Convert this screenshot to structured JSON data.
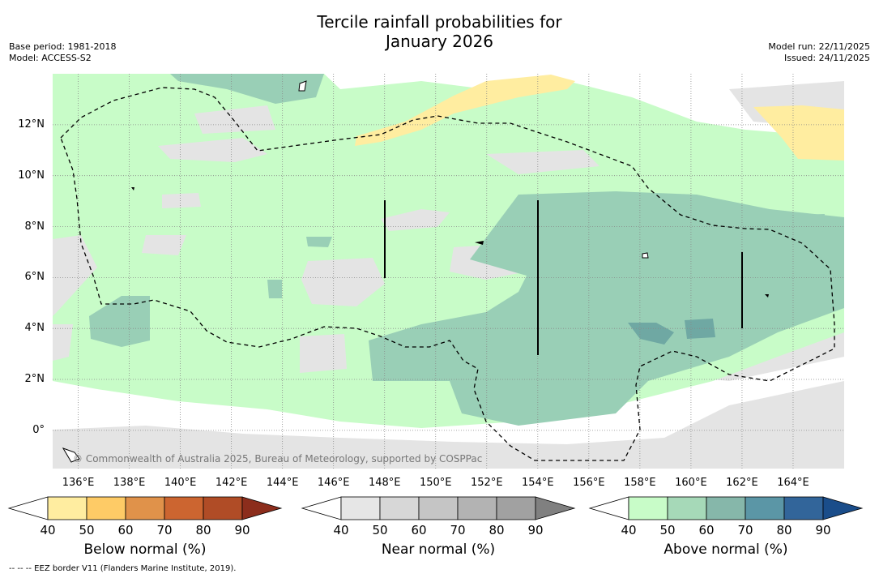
{
  "title": {
    "line1": "Tercile rainfall probabilities for",
    "line2": "January 2026"
  },
  "meta": {
    "base_period": "Base period: 1981-2018",
    "model": "Model: ACCESS-S2",
    "model_run": "Model run: 22/11/2025",
    "issued": "Issued: 24/11/2025"
  },
  "map": {
    "lat_ticks": [
      "12°N",
      "10°N",
      "8°N",
      "6°N",
      "4°N",
      "2°N",
      "0°"
    ],
    "lon_ticks": [
      "136°E",
      "138°E",
      "140°E",
      "142°E",
      "144°E",
      "146°E",
      "148°E",
      "150°E",
      "152°E",
      "154°E",
      "156°E",
      "158°E",
      "160°E",
      "162°E",
      "164°E"
    ],
    "copyright": "© Commonwealth of Australia 2025, Bureau of Meteorology, supported by COSPPac"
  },
  "colorbars": [
    {
      "label": "Below normal (%)",
      "ticks": [
        "40",
        "50",
        "60",
        "70",
        "80",
        "90"
      ],
      "colors": [
        "#ffeda0",
        "#fecb66",
        "#e0924a",
        "#cc6530",
        "#b04c26",
        "#8c2d1c"
      ]
    },
    {
      "label": "Near normal (%)",
      "ticks": [
        "40",
        "50",
        "60",
        "70",
        "80",
        "90"
      ],
      "colors": [
        "#e6e6e6",
        "#d7d7d7",
        "#c5c5c5",
        "#b3b3b3",
        "#a1a1a1",
        "#808080"
      ]
    },
    {
      "label": "Above normal (%)",
      "ticks": [
        "40",
        "50",
        "60",
        "70",
        "80",
        "90"
      ],
      "colors": [
        "#c8fcc8",
        "#a6d9b8",
        "#86b7aa",
        "#5b96a6",
        "#32659a",
        "#1a4d8a"
      ]
    }
  ],
  "footnote": "--  --  -- EEZ border V11 (Flanders Marine Institute, 2019)."
}
